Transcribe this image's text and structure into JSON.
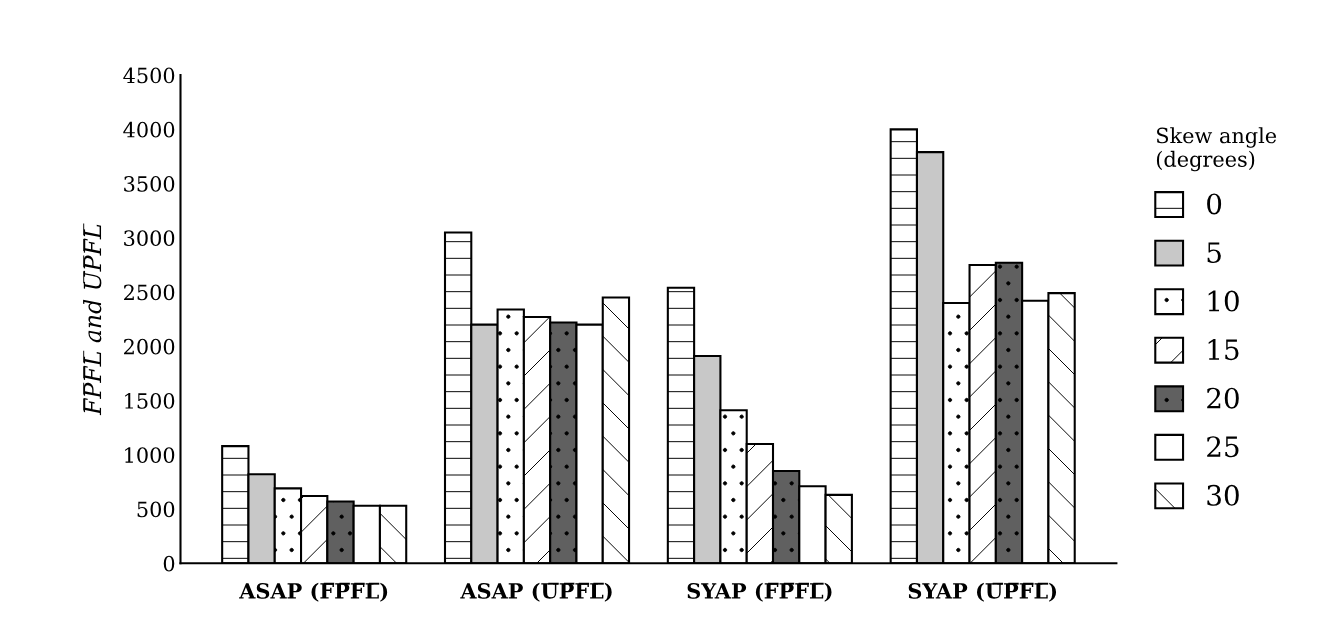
{
  "chart_data": {
    "type": "bar",
    "categories": [
      "ASAP (F̅P̅F̅L̅)",
      "ASAP (U̅P̅F̅L̅)",
      "SYAP (F̅P̅F̅L̅)",
      "SYAP (U̅P̅F̅L̅)"
    ],
    "ylabel": "F̅P̅F̅L̅ and U̅P̅F̅L̅",
    "legend_title": "Skew angle\n(degrees)",
    "series": [
      {
        "name": "0",
        "color": "#ffffff",
        "values": [
          1080,
          3050,
          2540,
          4000
        ]
      },
      {
        "name": "5",
        "color": "#c8c8c8",
        "values": [
          820,
          2200,
          1910,
          3790
        ]
      },
      {
        "name": "10",
        "color": "#ffffff",
        "values": [
          690,
          2340,
          1410,
          2400
        ]
      },
      {
        "name": "15",
        "color": "#ffffff",
        "values": [
          620,
          2270,
          1100,
          2750
        ]
      },
      {
        "name": "20",
        "color": "#606060",
        "values": [
          570,
          2220,
          850,
          2770
        ]
      },
      {
        "name": "25",
        "color": "#ffffff",
        "values": [
          530,
          2200,
          710,
          2420
        ]
      },
      {
        "name": "30",
        "color": "#ffffff",
        "values": [
          530,
          2450,
          630,
          2490
        ]
      }
    ],
    "ylim": [
      0,
      4500
    ],
    "yticks": [
      0,
      500,
      1000,
      1500,
      2000,
      2500,
      3000,
      3500,
      4000,
      4500
    ],
    "grid": false,
    "legend": "right"
  }
}
